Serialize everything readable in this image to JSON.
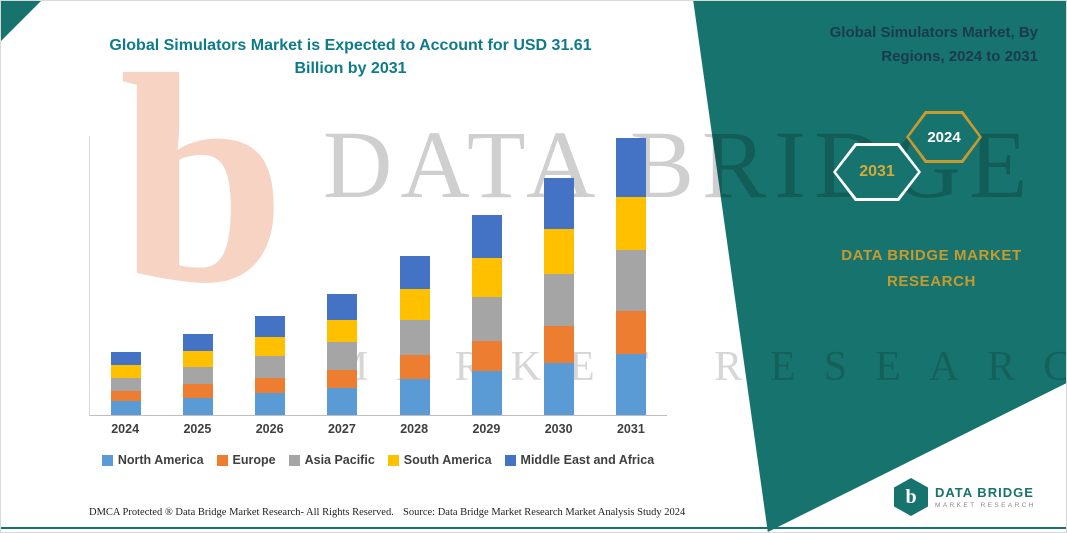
{
  "colors": {
    "teal": "#17736e",
    "gold": "#c79a2e",
    "title_teal": "#0d7b8a",
    "panel_title": "#1a3b4d",
    "axis_text": "#3f3f3f"
  },
  "panel": {
    "title": "Global Simulators Market, By Regions, 2024 to 2031",
    "brand": "DATA BRIDGE MARKET RESEARCH",
    "hex_back": "2031",
    "hex_front": "2024"
  },
  "watermark": {
    "brand": "DATA BRIDGE",
    "tagline": "MARKET RESEARCH",
    "logo_glyph": "b"
  },
  "brand": {
    "name": "DATA BRIDGE",
    "tagline": "MARKET RESEARCH",
    "glyph": "b"
  },
  "chart_data": {
    "type": "bar",
    "stacked": true,
    "title": "Global Simulators Market is Expected to Account for USD 31.61 Billion by 2031",
    "categories": [
      "2024",
      "2025",
      "2026",
      "2027",
      "2028",
      "2029",
      "2030",
      "2031"
    ],
    "series": [
      {
        "name": "North America",
        "color": "#5b9bd5",
        "values": [
          1.6,
          2.0,
          2.5,
          3.1,
          4.1,
          5.0,
          6.0,
          7.0
        ]
      },
      {
        "name": "Europe",
        "color": "#ed7d31",
        "values": [
          1.1,
          1.5,
          1.7,
          2.1,
          2.8,
          3.5,
          4.2,
          4.9
        ]
      },
      {
        "name": "Asia Pacific",
        "color": "#a5a5a5",
        "values": [
          1.5,
          2.0,
          2.5,
          3.1,
          4.0,
          5.0,
          5.9,
          6.9
        ]
      },
      {
        "name": "South America",
        "color": "#ffc000",
        "values": [
          1.5,
          1.8,
          2.2,
          2.6,
          3.5,
          4.4,
          5.2,
          6.1
        ]
      },
      {
        "name": "Middle East and Africa",
        "color": "#4472c4",
        "values": [
          1.5,
          2.0,
          2.4,
          2.9,
          3.8,
          4.9,
          5.8,
          6.7
        ]
      }
    ],
    "totals": [
      7.2,
      9.3,
      11.3,
      13.8,
      18.2,
      22.8,
      27.1,
      31.61
    ],
    "ylim": [
      0,
      32
    ],
    "gridlines": false,
    "legend_position": "bottom"
  },
  "footer": {
    "dmca": "DMCA Protected ® Data Bridge Market Research-  All Rights Reserved.",
    "source": "Source: Data Bridge Market Research  Market Analysis Study 2024"
  }
}
